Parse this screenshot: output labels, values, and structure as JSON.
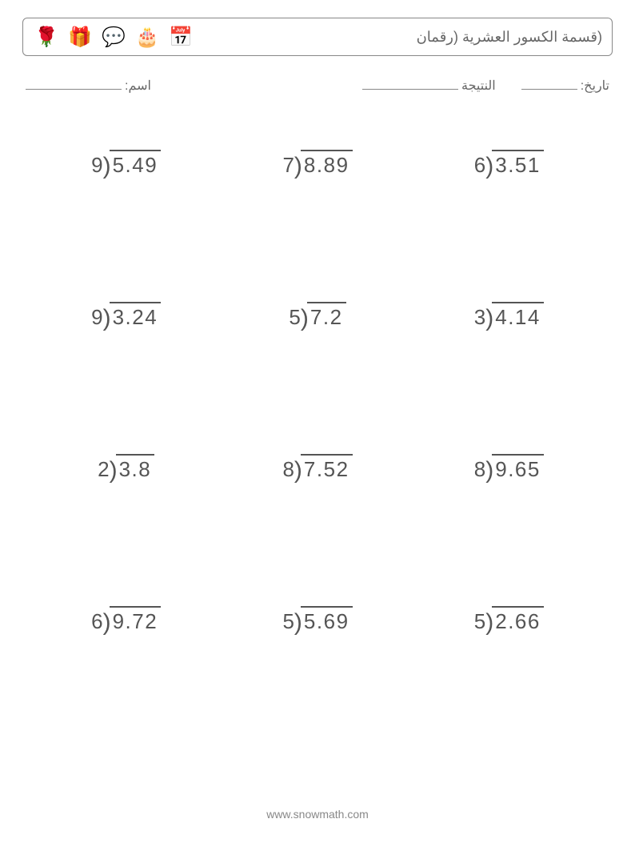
{
  "title": "(قسمة الكسور العشرية (رقمان",
  "labels": {
    "date": "تاريخ:",
    "score": "النتيجة",
    "name": "اسم:"
  },
  "icons": [
    {
      "name": "rose-icon",
      "glyph": "🌹"
    },
    {
      "name": "gift-icon",
      "glyph": "🎁"
    },
    {
      "name": "heart-speech-icon",
      "glyph": "💬"
    },
    {
      "name": "cake-icon",
      "glyph": "🎂"
    },
    {
      "name": "calendar-heart-icon",
      "glyph": "📅"
    }
  ],
  "problems": {
    "layout": {
      "rows": 4,
      "cols": 3
    },
    "font_size_pt": 20,
    "text_color": "#555555",
    "bar_color": "#555555",
    "items": [
      {
        "divisor": "9",
        "dividend": "5.49"
      },
      {
        "divisor": "7",
        "dividend": "8.89"
      },
      {
        "divisor": "6",
        "dividend": "3.51"
      },
      {
        "divisor": "9",
        "dividend": "3.24"
      },
      {
        "divisor": "5",
        "dividend": "7.2"
      },
      {
        "divisor": "3",
        "dividend": "4.14"
      },
      {
        "divisor": "2",
        "dividend": "3.8"
      },
      {
        "divisor": "8",
        "dividend": "7.52"
      },
      {
        "divisor": "8",
        "dividend": "9.65"
      },
      {
        "divisor": "6",
        "dividend": "9.72"
      },
      {
        "divisor": "5",
        "dividend": "5.69"
      },
      {
        "divisor": "5",
        "dividend": "2.66"
      }
    ]
  },
  "footer": "www.snowmath.com",
  "colors": {
    "page_background": "#ffffff",
    "border": "#888888",
    "text": "#555555",
    "muted_text": "#888888"
  }
}
